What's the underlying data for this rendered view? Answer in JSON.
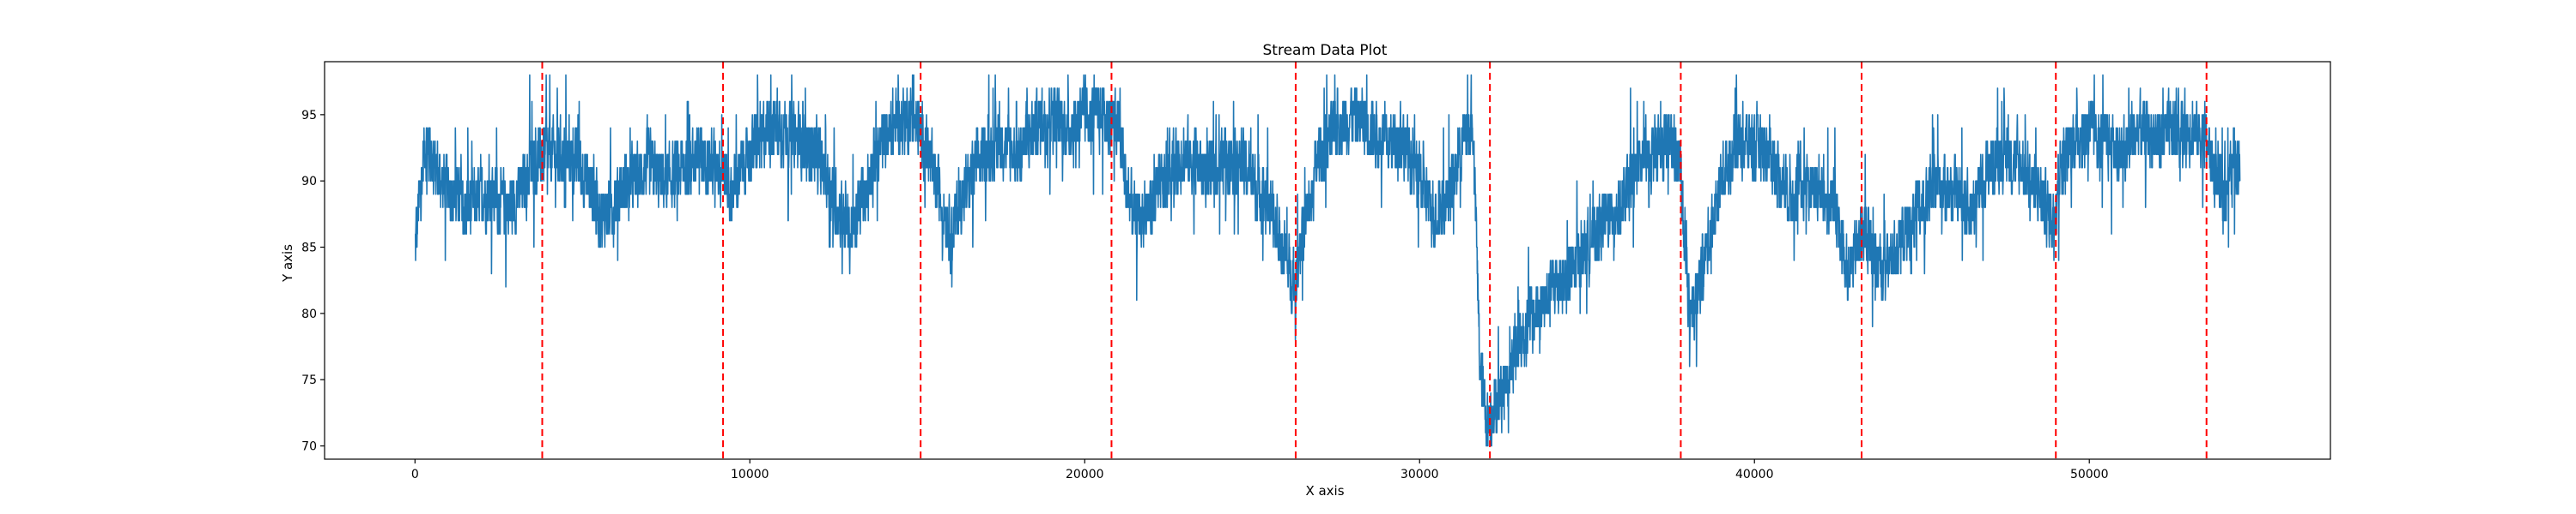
{
  "chart_data": {
    "type": "line",
    "title": "Stream Data Plot",
    "xlabel": "X axis",
    "ylabel": "Y axis",
    "xlim": [
      -2700,
      57200
    ],
    "ylim": [
      69,
      99
    ],
    "x_ticks": [
      0,
      10000,
      20000,
      30000,
      40000,
      50000
    ],
    "y_ticks": [
      70,
      75,
      80,
      85,
      90,
      95
    ],
    "grid": false,
    "legend": "none",
    "colors": {
      "series": "#1f77b4",
      "markers": "#ff0000"
    },
    "series": [
      {
        "x_start": 0,
        "x_end": 54500,
        "anchors": [
          [
            0,
            85
          ],
          [
            300,
            93
          ],
          [
            800,
            90
          ],
          [
            1500,
            88
          ],
          [
            2200,
            89
          ],
          [
            2900,
            88
          ],
          [
            3500,
            91
          ],
          [
            3900,
            92
          ],
          [
            4500,
            92
          ],
          [
            5000,
            91
          ],
          [
            5300,
            89
          ],
          [
            5600,
            87
          ],
          [
            6000,
            89
          ],
          [
            6500,
            90
          ],
          [
            7000,
            91
          ],
          [
            7500,
            90
          ],
          [
            8000,
            91
          ],
          [
            8500,
            92
          ],
          [
            9200,
            91
          ],
          [
            9400,
            89
          ],
          [
            9800,
            91
          ],
          [
            10500,
            94
          ],
          [
            11000,
            94
          ],
          [
            11500,
            93
          ],
          [
            12000,
            92
          ],
          [
            12500,
            89
          ],
          [
            13000,
            86
          ],
          [
            13300,
            88
          ],
          [
            13600,
            91
          ],
          [
            14200,
            94
          ],
          [
            14800,
            95
          ],
          [
            15200,
            93
          ],
          [
            15400,
            91
          ],
          [
            15800,
            88
          ],
          [
            16000,
            86
          ],
          [
            16500,
            90
          ],
          [
            17000,
            92
          ],
          [
            17500,
            93
          ],
          [
            18000,
            92
          ],
          [
            18500,
            94
          ],
          [
            19000,
            95
          ],
          [
            19500,
            94
          ],
          [
            20000,
            95
          ],
          [
            20500,
            95
          ],
          [
            21000,
            94
          ],
          [
            21200,
            90
          ],
          [
            21500,
            87
          ],
          [
            22000,
            88
          ],
          [
            22500,
            91
          ],
          [
            23000,
            92
          ],
          [
            23500,
            91
          ],
          [
            24000,
            91
          ],
          [
            24500,
            92
          ],
          [
            25000,
            90
          ],
          [
            25500,
            88
          ],
          [
            26000,
            84
          ],
          [
            26300,
            82
          ],
          [
            26400,
            85
          ],
          [
            26700,
            88
          ],
          [
            27000,
            92
          ],
          [
            27500,
            94
          ],
          [
            28000,
            95
          ],
          [
            28500,
            94
          ],
          [
            29000,
            93
          ],
          [
            29500,
            93
          ],
          [
            30000,
            90
          ],
          [
            30500,
            87
          ],
          [
            31000,
            90
          ],
          [
            31300,
            93
          ],
          [
            31600,
            94
          ],
          [
            31800,
            76
          ],
          [
            32000,
            72
          ],
          [
            32200,
            73
          ],
          [
            32600,
            75
          ],
          [
            33000,
            78
          ],
          [
            33500,
            80
          ],
          [
            34000,
            82
          ],
          [
            34500,
            83
          ],
          [
            35000,
            85
          ],
          [
            35500,
            87
          ],
          [
            36000,
            88
          ],
          [
            36500,
            91
          ],
          [
            37000,
            92
          ],
          [
            37500,
            93
          ],
          [
            37800,
            91
          ],
          [
            37900,
            83
          ],
          [
            38200,
            80
          ],
          [
            38500,
            84
          ],
          [
            39000,
            90
          ],
          [
            39500,
            93
          ],
          [
            40000,
            93
          ],
          [
            40500,
            92
          ],
          [
            41000,
            89
          ],
          [
            41500,
            90
          ],
          [
            42000,
            89
          ],
          [
            42500,
            87
          ],
          [
            42800,
            83
          ],
          [
            43200,
            86
          ],
          [
            43400,
            86
          ],
          [
            43800,
            83
          ],
          [
            44500,
            86
          ],
          [
            45000,
            88
          ],
          [
            45500,
            90
          ],
          [
            46000,
            89
          ],
          [
            46500,
            88
          ],
          [
            47000,
            91
          ],
          [
            47500,
            92
          ],
          [
            48000,
            91
          ],
          [
            48500,
            89
          ],
          [
            48900,
            87
          ],
          [
            49100,
            91
          ],
          [
            49500,
            93
          ],
          [
            50000,
            94
          ],
          [
            50500,
            93
          ],
          [
            51000,
            92
          ],
          [
            51500,
            94
          ],
          [
            52000,
            93
          ],
          [
            52500,
            94
          ],
          [
            53000,
            94
          ],
          [
            53500,
            93
          ],
          [
            53700,
            91
          ],
          [
            54000,
            89
          ],
          [
            54300,
            91
          ],
          [
            54500,
            92
          ]
        ],
        "noise_amplitude": 3.2,
        "y_clip": [
          70,
          98
        ]
      }
    ],
    "vertical_markers": [
      3800,
      9200,
      15100,
      20800,
      26300,
      32100,
      37800,
      43200,
      49000,
      53500
    ]
  }
}
